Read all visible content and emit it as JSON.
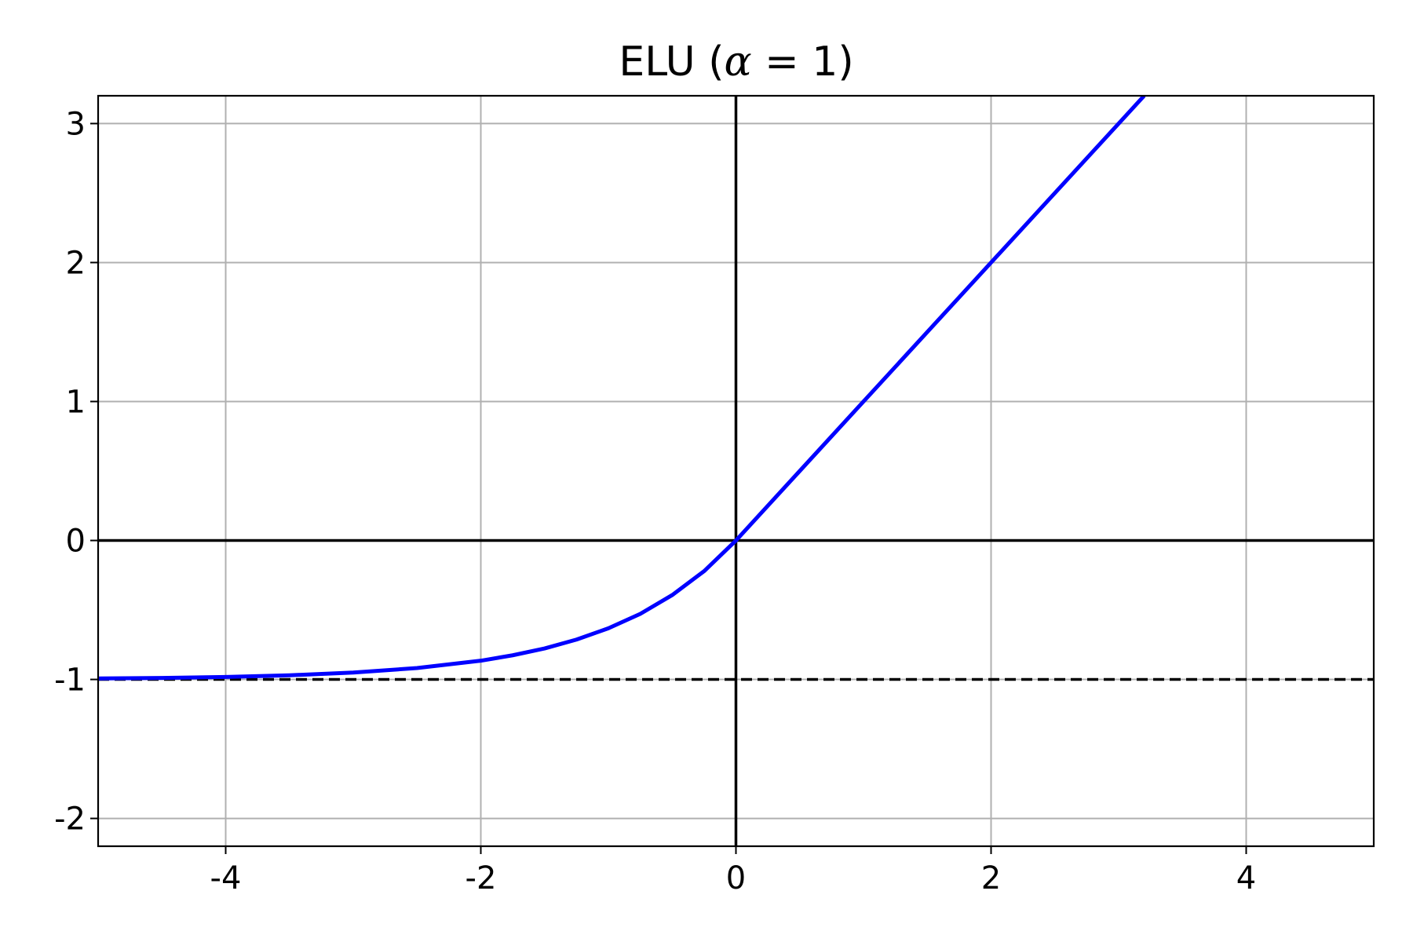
{
  "chart_data": {
    "type": "line",
    "title": "ELU (α = 1)",
    "xlabel": "",
    "ylabel": "",
    "xlim": [
      -5,
      5
    ],
    "ylim": [
      -2.2,
      3.2
    ],
    "xticks": [
      -4,
      -2,
      0,
      2,
      4
    ],
    "xtick_labels": [
      "-4",
      "-2",
      "0",
      "2",
      "4"
    ],
    "yticks": [
      -2,
      -1,
      0,
      1,
      2,
      3
    ],
    "ytick_labels": [
      "-2",
      "-1",
      "0",
      "1",
      "2",
      "3"
    ],
    "grid": true,
    "series": [
      {
        "color": "#0000ff",
        "x": [
          -5,
          -4.5,
          -4,
          -3.5,
          -3,
          -2.5,
          -2,
          -1.75,
          -1.5,
          -1.25,
          -1,
          -0.75,
          -0.5,
          -0.25,
          0,
          0.5,
          1,
          1.5,
          2,
          2.5,
          3,
          3.2
        ],
        "values": [
          -0.993,
          -0.989,
          -0.982,
          -0.97,
          -0.95,
          -0.918,
          -0.865,
          -0.826,
          -0.777,
          -0.713,
          -0.632,
          -0.528,
          -0.393,
          -0.221,
          0,
          0.5,
          1,
          1.5,
          2,
          2.5,
          3,
          3.2
        ]
      }
    ],
    "reference_lines": [
      {
        "orientation": "horizontal",
        "value": 0,
        "style": "solid",
        "color": "#000000"
      },
      {
        "orientation": "vertical",
        "value": 0,
        "style": "solid",
        "color": "#000000"
      },
      {
        "orientation": "horizontal",
        "value": -1,
        "style": "dashed",
        "color": "#000000"
      }
    ]
  }
}
